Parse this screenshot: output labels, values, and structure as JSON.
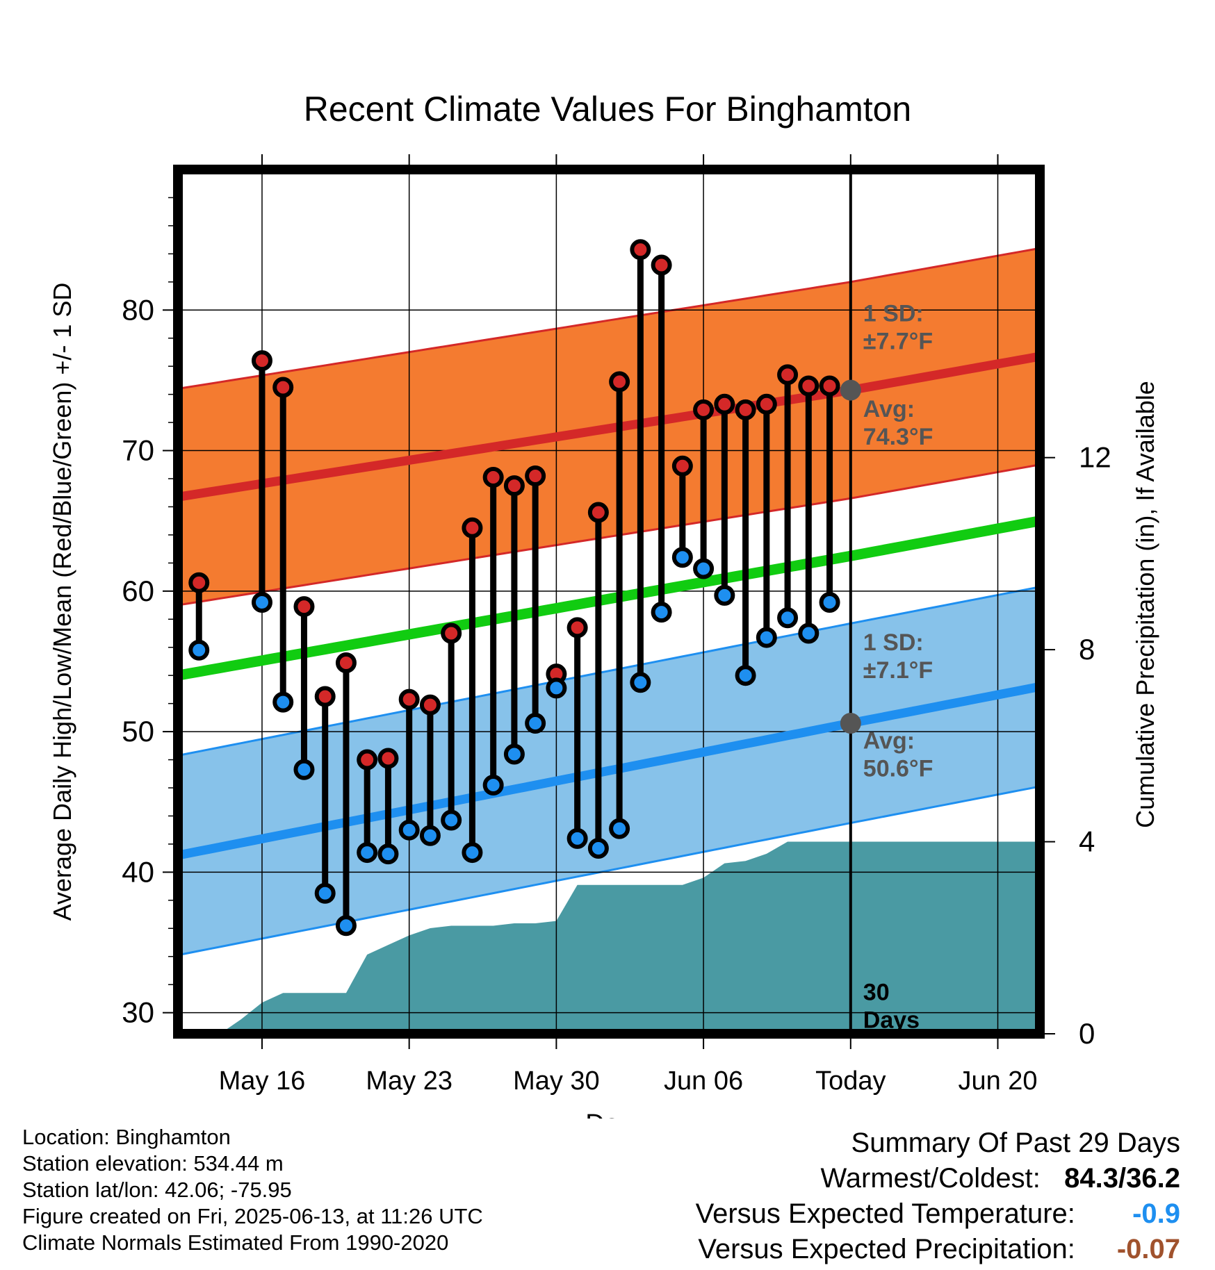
{
  "colors": {
    "high_band": "#f47b30",
    "high_line": "#d42828",
    "mean_line": "#11cc11",
    "low_band": "#87c2ea",
    "low_line": "#1e8ff0",
    "precip_fill": "#4a9aa3",
    "annotation": "#555555",
    "dot_red": "#d42828",
    "dot_blue": "#1e8ff0",
    "temp_departure": "#1e8ff0",
    "precip_departure": "#a0522d"
  },
  "chart_data": {
    "type": "line",
    "title": "Recent Climate Values For Binghamton",
    "xlabel": "Day",
    "ylabel": "Average Daily High/Low/Mean (Red/Blue/Green) +/- 1 SD",
    "y2label": "Cumulative Precipitation (in), If Available",
    "xlim": [
      "2025-05-12",
      "2025-06-22"
    ],
    "ylim": [
      28.5,
      90
    ],
    "y2lim": [
      0,
      18
    ],
    "x_ticks": [
      {
        "date": "2025-05-16",
        "label": "May 16"
      },
      {
        "date": "2025-05-23",
        "label": "May 23"
      },
      {
        "date": "2025-05-30",
        "label": "May 30"
      },
      {
        "date": "2025-06-06",
        "label": "Jun 06"
      },
      {
        "date": "2025-06-13",
        "label": "Today"
      },
      {
        "date": "2025-06-20",
        "label": "Jun 20"
      }
    ],
    "y_ticks": [
      30,
      40,
      50,
      60,
      70,
      80
    ],
    "y2_ticks": [
      0,
      4,
      8,
      12
    ],
    "grid": true,
    "today": "2025-06-13",
    "normals": {
      "dates": [
        "2025-05-12",
        "2025-06-13",
        "2025-06-22"
      ],
      "high_avg": [
        66.7,
        74.3,
        76.7
      ],
      "high_sd": 7.7,
      "low_avg": [
        41.2,
        50.6,
        53.2
      ],
      "low_sd": 7.1,
      "mean_avg": [
        54.0,
        62.5,
        65.0
      ]
    },
    "observed": {
      "dates": [
        "2025-05-13",
        "2025-05-16",
        "2025-05-17",
        "2025-05-18",
        "2025-05-19",
        "2025-05-20",
        "2025-05-21",
        "2025-05-22",
        "2025-05-23",
        "2025-05-24",
        "2025-05-25",
        "2025-05-26",
        "2025-05-27",
        "2025-05-28",
        "2025-05-29",
        "2025-05-30",
        "2025-05-31",
        "2025-06-01",
        "2025-06-02",
        "2025-06-03",
        "2025-06-04",
        "2025-06-05",
        "2025-06-06",
        "2025-06-07",
        "2025-06-08",
        "2025-06-09",
        "2025-06-10",
        "2025-06-11",
        "2025-06-12"
      ],
      "high": [
        60.6,
        76.4,
        74.5,
        58.9,
        52.5,
        54.9,
        48.0,
        48.1,
        52.3,
        51.9,
        57.0,
        64.5,
        68.1,
        67.5,
        68.2,
        54.1,
        57.4,
        65.6,
        74.9,
        84.3,
        83.2,
        68.9,
        72.9,
        73.3,
        72.9,
        73.3,
        75.4,
        74.6,
        74.6
      ],
      "low": [
        55.8,
        59.2,
        52.1,
        47.3,
        38.5,
        36.2,
        41.4,
        41.3,
        43.0,
        42.6,
        43.7,
        41.4,
        46.2,
        48.4,
        50.6,
        53.1,
        42.4,
        41.7,
        43.1,
        53.5,
        58.5,
        62.4,
        61.6,
        59.7,
        54.0,
        56.7,
        58.1,
        57.0,
        59.2
      ]
    },
    "precip": {
      "dates": [
        "2025-05-14",
        "2025-05-15",
        "2025-05-16",
        "2025-05-17",
        "2025-05-18",
        "2025-05-19",
        "2025-05-20",
        "2025-05-21",
        "2025-05-22",
        "2025-05-23",
        "2025-05-24",
        "2025-05-25",
        "2025-05-26",
        "2025-05-27",
        "2025-05-28",
        "2025-05-29",
        "2025-05-30",
        "2025-05-31",
        "2025-06-01",
        "2025-06-02",
        "2025-06-03",
        "2025-06-04",
        "2025-06-05",
        "2025-06-06",
        "2025-06-07",
        "2025-06-08",
        "2025-06-09",
        "2025-06-10",
        "2025-06-11",
        "2025-06-12",
        "2025-06-22"
      ],
      "values": [
        0.0,
        0.3,
        0.65,
        0.85,
        0.85,
        0.85,
        0.85,
        1.65,
        1.85,
        2.05,
        2.2,
        2.25,
        2.25,
        2.25,
        2.3,
        2.3,
        2.35,
        3.1,
        3.1,
        3.1,
        3.1,
        3.1,
        3.1,
        3.25,
        3.55,
        3.6,
        3.75,
        4.0,
        4.0,
        4.0,
        4.0
      ]
    },
    "annotations": {
      "high_sd_label": [
        "1 SD:",
        "±7.7°F"
      ],
      "high_avg_label": [
        "Avg:",
        "74.3°F"
      ],
      "low_sd_label": [
        "1 SD:",
        "±7.1°F"
      ],
      "low_avg_label": [
        "Avg:",
        "50.6°F"
      ],
      "days_label": [
        "30",
        "Days"
      ]
    }
  },
  "footer": {
    "location": "Location: Binghamton",
    "elevation": "Station elevation: 534.44 m",
    "latlon": "Station lat/lon: 42.06; -75.95",
    "created": "Figure created on Fri, 2025-06-13, at 11:26 UTC",
    "normals": "Climate Normals Estimated From 1990-2020"
  },
  "summary": {
    "heading": "Summary Of Past 29 Days",
    "warm_cold_label": "Warmest/Coldest:",
    "warm_cold_value": "84.3/36.2",
    "temp_label": "Versus Expected Temperature:",
    "temp_value": "-0.9",
    "precip_label": "Versus Expected Precipitation:",
    "precip_value": "-0.07"
  }
}
